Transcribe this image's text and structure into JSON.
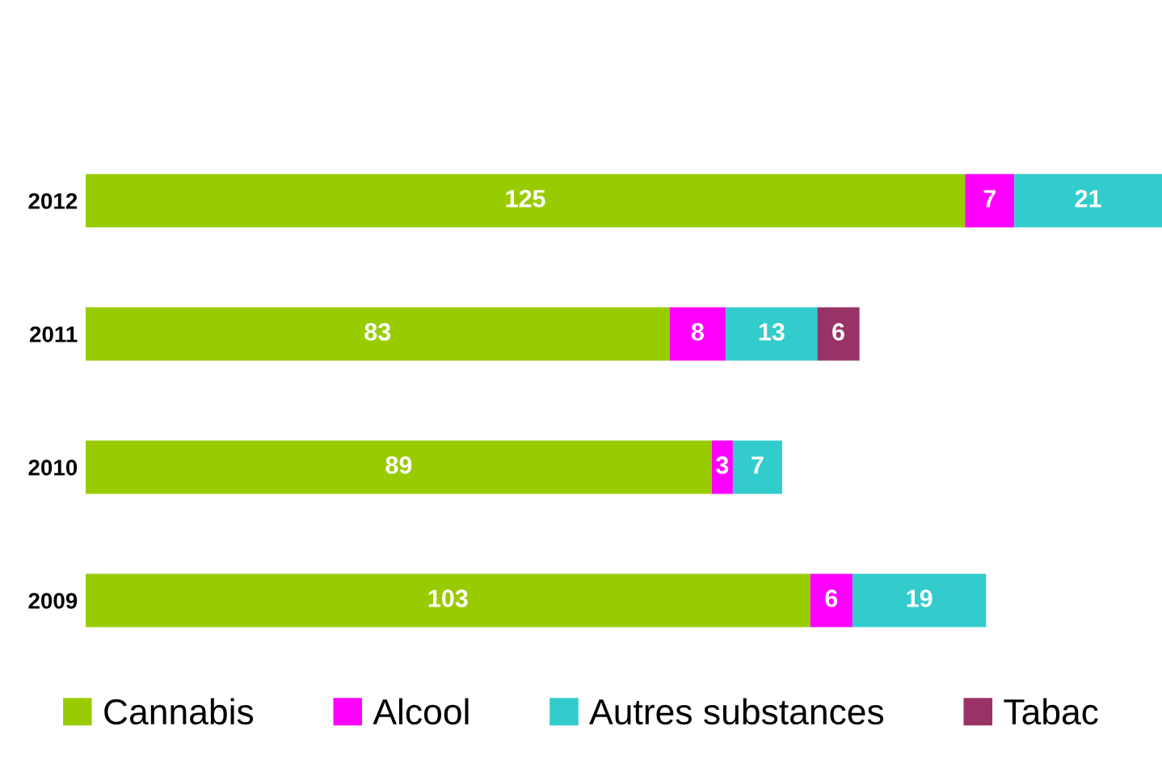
{
  "chart_data": {
    "type": "bar",
    "orientation": "horizontal",
    "stacked": true,
    "data_labels": true,
    "legend": "bottom",
    "categories": [
      "2012",
      "2011",
      "2010",
      "2009"
    ],
    "series": [
      {
        "name": "Cannabis",
        "color": "#99cc00",
        "values": [
          125,
          83,
          89,
          103
        ]
      },
      {
        "name": "Alcool",
        "color": "#ff00ff",
        "values": [
          7,
          8,
          3,
          6
        ]
      },
      {
        "name": "Autres substances",
        "color": "#33cccc",
        "values": [
          21,
          13,
          7,
          19
        ]
      },
      {
        "name": "Tabac",
        "color": "#993366",
        "values": [
          null,
          6,
          null,
          null
        ]
      }
    ]
  }
}
